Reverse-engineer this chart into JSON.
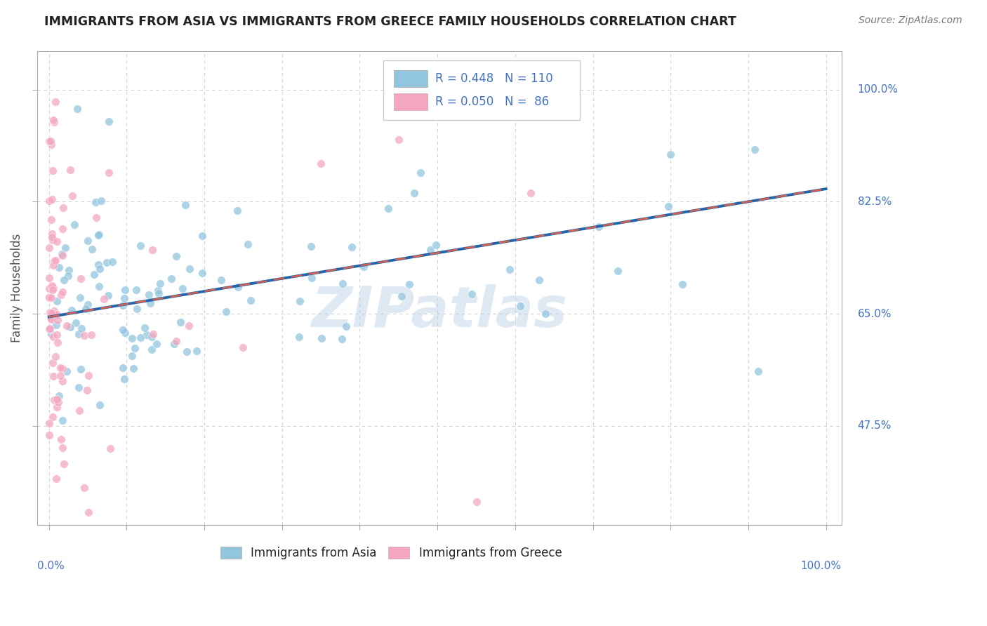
{
  "title": "IMMIGRANTS FROM ASIA VS IMMIGRANTS FROM GREECE FAMILY HOUSEHOLDS CORRELATION CHART",
  "source": "Source: ZipAtlas.com",
  "ylabel": "Family Households",
  "legend_r_asia": "0.448",
  "legend_n_asia": "110",
  "legend_r_greece": "0.050",
  "legend_n_greece": "86",
  "color_asia": "#92c5de",
  "color_greece": "#f4a6c0",
  "color_asia_line": "#2166ac",
  "color_greece_line": "#d6604d",
  "watermark": "ZIPatlas",
  "background_color": "#ffffff",
  "grid_color": "#cccccc",
  "title_color": "#222222",
  "label_color": "#4472c4",
  "ytick_vals": [
    0.475,
    0.65,
    0.825,
    1.0
  ],
  "ytick_labels": [
    "47.5%",
    "65.0%",
    "82.5%",
    "100.0%"
  ],
  "xlim": [
    -0.015,
    1.02
  ],
  "ylim": [
    0.32,
    1.06
  ],
  "asia_slope": 0.2,
  "asia_intercept": 0.645,
  "greece_slope": 0.2,
  "greece_intercept": 0.645
}
